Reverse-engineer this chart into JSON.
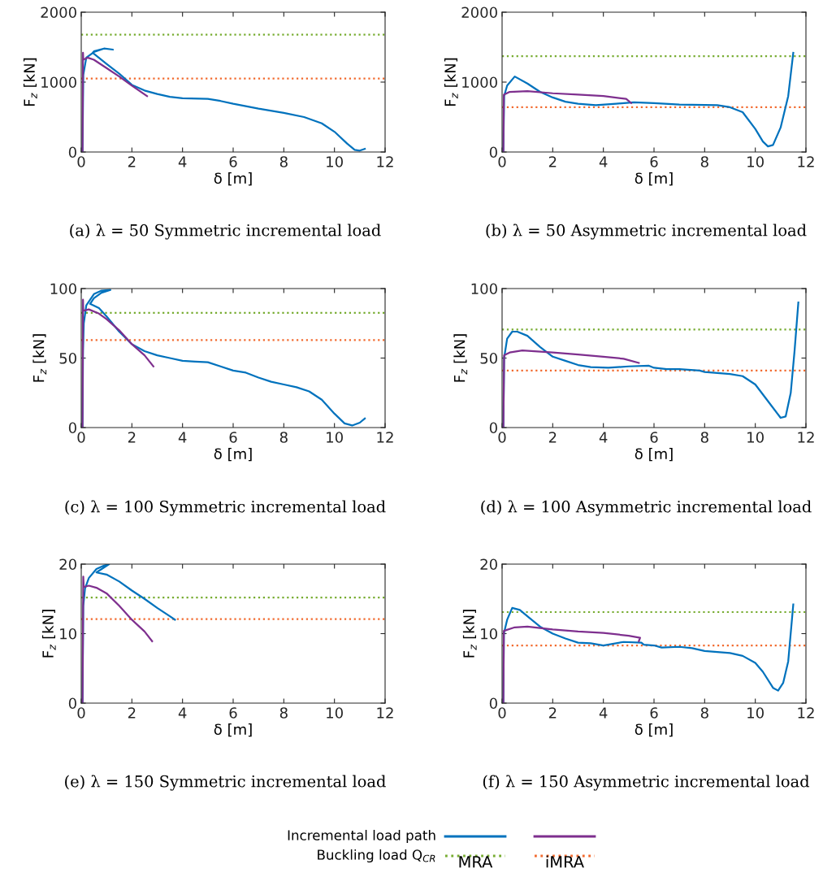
{
  "chart_data": [
    {
      "type": "line",
      "title": "(a) λ = 50 Symmetric incremental load",
      "xlabel": "δ [m]",
      "ylabel": "F$_{z}$ [kN]",
      "xlim": [
        0,
        12
      ],
      "xticks": [
        0,
        2,
        4,
        6,
        8,
        10,
        12
      ],
      "ylim": [
        0,
        2000
      ],
      "yticks": [
        0,
        1000,
        2000
      ],
      "series": [
        {
          "color": "#0072bd",
          "x": [
            0.05,
            0.08,
            0.2,
            0.5,
            0.9,
            1.25,
            0.9,
            0.5,
            0.45,
            1.0,
            1.5,
            2.0,
            2.5,
            3,
            3.5,
            4,
            5,
            5.5,
            6,
            7,
            8,
            8.8,
            9.5,
            10,
            10.5,
            10.8,
            11,
            11.2
          ],
          "values": [
            0,
            1100,
            1350,
            1430,
            1480,
            1465,
            1480,
            1440,
            1420,
            1260,
            1120,
            960,
            880,
            830,
            790,
            770,
            760,
            730,
            690,
            620,
            560,
            500,
            410,
            290,
            120,
            30,
            20,
            45
          ]
        },
        {
          "color": "#7e2f8e",
          "x": [
            0.05,
            0.07,
            0.08,
            0.25,
            0.5,
            1,
            1.5,
            2,
            2.6
          ],
          "values": [
            0,
            1420,
            1320,
            1350,
            1320,
            1200,
            1080,
            950,
            800
          ]
        }
      ],
      "ref_lines": [
        {
          "axis": "y",
          "value": 1680,
          "color": "#77ac30",
          "line_style": "dotted"
        },
        {
          "axis": "y",
          "value": 1050,
          "color": "#f26a2e",
          "line_style": "dotted"
        }
      ]
    },
    {
      "type": "line",
      "title": "(b) λ = 50 Asymmetric incremental load",
      "xlabel": "δ [m]",
      "ylabel": "F$_{z}$ [kN]",
      "xlim": [
        0,
        12
      ],
      "xticks": [
        0,
        2,
        4,
        6,
        8,
        10,
        12
      ],
      "ylim": [
        0,
        2000
      ],
      "yticks": [
        0,
        1000,
        2000
      ],
      "series": [
        {
          "color": "#0072bd",
          "x": [
            0.05,
            0.08,
            0.2,
            0.5,
            1,
            1.5,
            2,
            2.5,
            3,
            3.7,
            4.5,
            5.2,
            6,
            7,
            8.5,
            9,
            9.5,
            10,
            10.3,
            10.5,
            10.7,
            11,
            11.3,
            11.5
          ],
          "values": [
            0,
            800,
            950,
            1080,
            980,
            860,
            780,
            720,
            690,
            670,
            690,
            710,
            700,
            680,
            670,
            640,
            570,
            330,
            150,
            80,
            100,
            350,
            800,
            1420
          ]
        },
        {
          "color": "#7e2f8e",
          "x": [
            0.05,
            0.07,
            0.3,
            1,
            2,
            3,
            4,
            4.9,
            5.1
          ],
          "values": [
            0,
            820,
            860,
            870,
            840,
            820,
            800,
            760,
            700
          ]
        }
      ],
      "ref_lines": [
        {
          "axis": "y",
          "value": 1370,
          "color": "#77ac30",
          "line_style": "dotted"
        },
        {
          "axis": "y",
          "value": 640,
          "color": "#f26a2e",
          "line_style": "dotted"
        }
      ]
    },
    {
      "type": "line",
      "title": "(c) λ = 100 Symmetric incremental load",
      "xlabel": "δ [m]",
      "ylabel": "F$_{z}$ [kN]",
      "xlim": [
        0,
        12
      ],
      "xticks": [
        0,
        2,
        4,
        6,
        8,
        10,
        12
      ],
      "ylim": [
        0,
        100
      ],
      "yticks": [
        0,
        50,
        100
      ],
      "series": [
        {
          "color": "#0072bd",
          "x": [
            0.05,
            0.07,
            0.1,
            0.2,
            0.5,
            0.8,
            1.15,
            0.8,
            0.5,
            0.35,
            0.7,
            1.0,
            1.5,
            2,
            2.5,
            3,
            3.5,
            4,
            4.5,
            5,
            5.5,
            6,
            6.5,
            7,
            7.5,
            8,
            8.5,
            9,
            9.5,
            10,
            10.4,
            10.7,
            11,
            11.2
          ],
          "values": [
            0,
            55,
            75,
            88,
            96,
            98.5,
            99,
            97,
            93,
            89,
            86,
            80,
            69,
            60,
            55,
            52,
            50,
            48,
            47.5,
            47,
            44,
            41,
            39.5,
            36,
            33,
            31,
            29,
            26,
            20,
            10,
            3,
            1.5,
            3.5,
            6.5
          ]
        },
        {
          "color": "#7e2f8e",
          "x": [
            0.05,
            0.07,
            0.08,
            0.3,
            0.7,
            1,
            1.5,
            2,
            2.5,
            2.85
          ],
          "values": [
            0,
            92,
            84,
            85,
            82,
            78,
            70,
            60,
            52,
            44
          ]
        }
      ],
      "ref_lines": [
        {
          "axis": "y",
          "value": 82.5,
          "color": "#77ac30",
          "line_style": "dotted"
        },
        {
          "axis": "y",
          "value": 63,
          "color": "#f26a2e",
          "line_style": "dotted"
        }
      ]
    },
    {
      "type": "line",
      "title": "(d) λ = 100 Asymmetric incremental load",
      "xlabel": "δ [m]",
      "ylabel": "F$_{z}$ [kN]",
      "xlim": [
        0,
        12
      ],
      "xticks": [
        0,
        2,
        4,
        6,
        8,
        10,
        12
      ],
      "ylim": [
        0,
        100
      ],
      "yticks": [
        0,
        50,
        100
      ],
      "series": [
        {
          "color": "#0072bd",
          "x": [
            0.05,
            0.08,
            0.2,
            0.4,
            0.6,
            1,
            1.5,
            2,
            2.5,
            3,
            3.5,
            4.2,
            5,
            5.8,
            6,
            6.5,
            7,
            7.8,
            8,
            9,
            9.5,
            10,
            10.5,
            11,
            11.2,
            11.4,
            11.55,
            11.7
          ],
          "values": [
            0,
            50,
            64,
            69,
            69,
            66,
            58,
            51,
            48,
            45,
            43.5,
            43,
            44,
            44.5,
            43,
            42,
            42,
            41,
            40,
            38.5,
            37,
            31,
            19,
            7,
            8,
            25,
            55,
            90
          ]
        },
        {
          "color": "#7e2f8e",
          "x": [
            0.05,
            0.08,
            0.3,
            0.8,
            2,
            3,
            4,
            4.8,
            5.4
          ],
          "values": [
            0,
            52,
            54,
            55.5,
            54,
            52.5,
            51,
            49.5,
            46.5
          ]
        }
      ],
      "ref_lines": [
        {
          "axis": "y",
          "value": 70.5,
          "color": "#77ac30",
          "line_style": "dotted"
        },
        {
          "axis": "y",
          "value": 41,
          "color": "#f26a2e",
          "line_style": "dotted"
        }
      ]
    },
    {
      "type": "line",
      "title": "(e) λ = 150 Symmetric incremental load",
      "xlabel": "δ [m]",
      "ylabel": "F$_{z}$ [kN]",
      "xlim": [
        0,
        12
      ],
      "xticks": [
        0,
        2,
        4,
        6,
        8,
        10,
        12
      ],
      "ylim": [
        0,
        20
      ],
      "yticks": [
        0,
        10,
        20
      ],
      "series": [
        {
          "color": "#0072bd",
          "x": [
            0.05,
            0.08,
            0.15,
            0.3,
            0.6,
            0.9,
            1.1,
            0.6,
            1.0,
            1.5,
            2,
            2.5,
            3,
            3.5,
            3.7
          ],
          "values": [
            0,
            14,
            16.5,
            18,
            19.3,
            19.8,
            20,
            18.8,
            18.5,
            17.5,
            16.2,
            15,
            13.7,
            12.5,
            12
          ]
        },
        {
          "color": "#7e2f8e",
          "x": [
            0.05,
            0.08,
            0.1,
            0.3,
            0.6,
            1,
            1.5,
            2,
            2.5,
            2.8
          ],
          "values": [
            0,
            18.2,
            16.7,
            16.9,
            16.6,
            15.8,
            14,
            12,
            10.3,
            8.9
          ]
        }
      ],
      "ref_lines": [
        {
          "axis": "y",
          "value": 15.2,
          "color": "#77ac30",
          "line_style": "dotted"
        },
        {
          "axis": "y",
          "value": 12.1,
          "color": "#f26a2e",
          "line_style": "dotted"
        }
      ]
    },
    {
      "type": "line",
      "title": "(f) λ = 150 Asymmetric incremental load",
      "xlabel": "δ [m]",
      "ylabel": "F$_{z}$ [kN]",
      "xlim": [
        0,
        12
      ],
      "xticks": [
        0,
        2,
        4,
        6,
        8,
        10,
        12
      ],
      "ylim": [
        0,
        20
      ],
      "yticks": [
        0,
        10,
        20
      ],
      "series": [
        {
          "color": "#0072bd",
          "x": [
            0.05,
            0.07,
            0.2,
            0.4,
            0.7,
            1,
            1.5,
            2,
            2.5,
            3,
            3.5,
            4,
            4.8,
            5.5,
            5.6,
            6,
            6.3,
            7,
            7.5,
            8,
            9,
            9.5,
            10,
            10.3,
            10.7,
            10.9,
            11.1,
            11.3,
            11.5
          ],
          "values": [
            0,
            10,
            12,
            13.7,
            13.4,
            12.5,
            11,
            10,
            9.3,
            8.7,
            8.6,
            8.3,
            8.8,
            8.7,
            8.4,
            8.3,
            8,
            8.1,
            7.9,
            7.5,
            7.2,
            6.8,
            5.8,
            4.5,
            2.2,
            1.8,
            2.9,
            6,
            14.2
          ]
        },
        {
          "color": "#7e2f8e",
          "x": [
            0.05,
            0.07,
            0.5,
            1,
            2,
            3,
            4,
            5,
            5.45,
            5.4
          ],
          "values": [
            0,
            10.4,
            10.9,
            11,
            10.6,
            10.3,
            10.1,
            9.7,
            9.4,
            8.9
          ]
        }
      ],
      "ref_lines": [
        {
          "axis": "y",
          "value": 13.1,
          "color": "#77ac30",
          "line_style": "dotted"
        },
        {
          "axis": "y",
          "value": 8.3,
          "color": "#f26a2e",
          "line_style": "dotted"
        }
      ],
      "annotations": [
        "Incremental load path",
        "Buckling load Q$_{CR}$",
        "MRA",
        "iMRA"
      ]
    }
  ]
}
